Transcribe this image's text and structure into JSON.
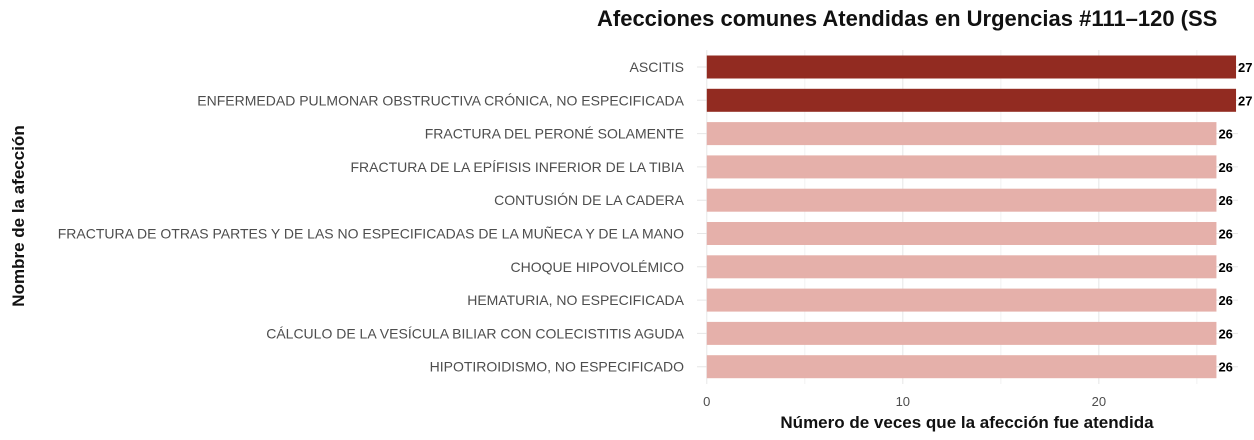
{
  "chart_data": {
    "type": "bar",
    "orientation": "horizontal",
    "title": "Afecciones comunes Atendidas en Urgencias #111–120 (SS",
    "xlabel": "Número de veces que la afección fue atendida",
    "ylabel": "Nombre de la afección",
    "categories": [
      "ASCITIS",
      "ENFERMEDAD PULMONAR OBSTRUCTIVA CRÓNICA, NO ESPECIFICADA",
      "FRACTURA DEL PERONÉ SOLAMENTE",
      "FRACTURA DE LA EPÍFISIS INFERIOR DE LA TIBIA",
      "CONTUSIÓN DE LA CADERA",
      "FRACTURA DE OTRAS PARTES Y DE LAS NO ESPECIFICADAS DE LA MUÑECA Y DE LA MANO",
      "CHOQUE HIPOVOLÉMICO",
      "HEMATURIA, NO ESPECIFICADA",
      "CÁLCULO DE LA VESÍCULA BILIAR CON COLECISTITIS AGUDA",
      "HIPOTIROIDISMO, NO ESPECIFICADO"
    ],
    "values": [
      27,
      27,
      26,
      26,
      26,
      26,
      26,
      26,
      26,
      26
    ],
    "data_labels": [
      "27",
      "27",
      "26",
      "26",
      "26",
      "26",
      "26",
      "26",
      "26",
      "26"
    ],
    "bar_colors": [
      "#922b21",
      "#922b21",
      "#e5b0aa",
      "#e5b0aa",
      "#e5b0aa",
      "#e5b0aa",
      "#e5b0aa",
      "#e5b0aa",
      "#e5b0aa",
      "#e5b0aa"
    ],
    "xticks": [
      0,
      10,
      20
    ],
    "xtick_labels": [
      "0",
      "10",
      "20"
    ],
    "xlim": [
      -0.5,
      27.1
    ],
    "grid": true,
    "legend": "none"
  }
}
